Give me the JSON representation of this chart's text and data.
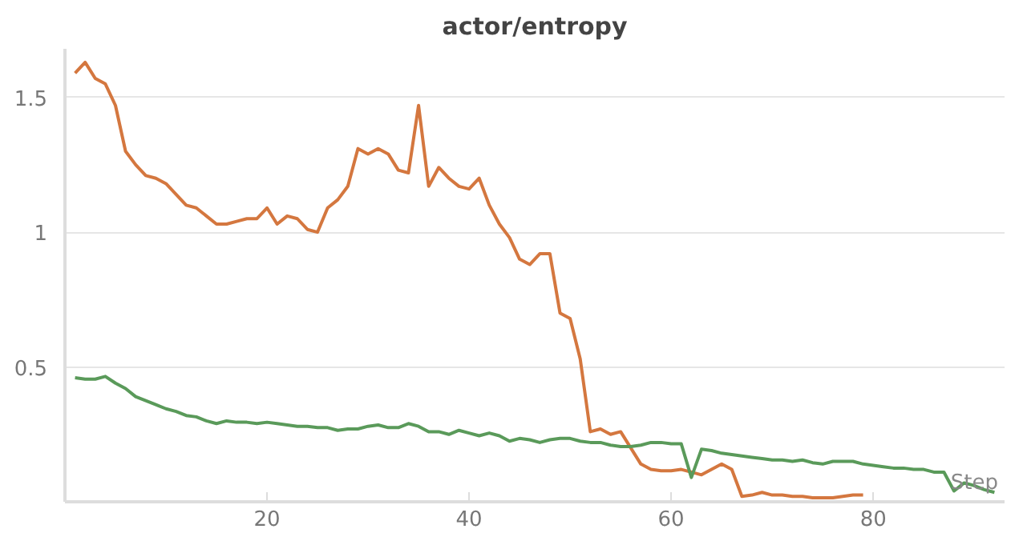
{
  "chart_data": {
    "type": "line",
    "title": "actor/entropy",
    "xlabel": "Step",
    "xlim": [
      0,
      93
    ],
    "ylim": [
      0,
      1.68
    ],
    "xticks": [
      20,
      40,
      60,
      80
    ],
    "yticks": [
      0.5,
      1,
      1.5
    ],
    "grid": "y",
    "line_style": "solid",
    "series": [
      {
        "color": "#d4773f",
        "x": [
          1,
          2,
          3,
          4,
          5,
          6,
          7,
          8,
          9,
          10,
          11,
          12,
          13,
          14,
          15,
          16,
          17,
          18,
          19,
          20,
          21,
          22,
          23,
          24,
          25,
          26,
          27,
          28,
          29,
          30,
          31,
          32,
          33,
          34,
          35,
          36,
          37,
          38,
          39,
          40,
          41,
          42,
          43,
          44,
          45,
          46,
          47,
          48,
          49,
          50,
          51,
          52,
          53,
          54,
          55,
          56,
          57,
          58,
          59,
          60,
          61,
          62,
          63,
          64,
          65,
          66,
          67,
          68,
          69,
          70,
          71,
          72,
          73,
          74,
          75,
          76,
          77,
          78,
          79
        ],
        "values": [
          1.59,
          1.63,
          1.57,
          1.55,
          1.47,
          1.3,
          1.25,
          1.21,
          1.2,
          1.18,
          1.14,
          1.1,
          1.09,
          1.06,
          1.03,
          1.03,
          1.04,
          1.05,
          1.05,
          1.09,
          1.03,
          1.06,
          1.05,
          1.01,
          1.0,
          1.09,
          1.12,
          1.17,
          1.31,
          1.29,
          1.31,
          1.29,
          1.23,
          1.22,
          1.47,
          1.17,
          1.24,
          1.2,
          1.17,
          1.16,
          1.2,
          1.1,
          1.03,
          0.98,
          0.9,
          0.88,
          0.92,
          0.92,
          0.7,
          0.68,
          0.53,
          0.26,
          0.27,
          0.25,
          0.26,
          0.2,
          0.14,
          0.12,
          0.115,
          0.115,
          0.12,
          0.11,
          0.1,
          0.12,
          0.14,
          0.12,
          0.02,
          0.025,
          0.035,
          0.025,
          0.025,
          0.02,
          0.02,
          0.015,
          0.015,
          0.015,
          0.02,
          0.025,
          0.025
        ]
      },
      {
        "color": "#5a9a5a",
        "x": [
          1,
          2,
          3,
          4,
          5,
          6,
          7,
          8,
          9,
          10,
          11,
          12,
          13,
          14,
          15,
          16,
          17,
          18,
          19,
          20,
          21,
          22,
          23,
          24,
          25,
          26,
          27,
          28,
          29,
          30,
          31,
          32,
          33,
          34,
          35,
          36,
          37,
          38,
          39,
          40,
          41,
          42,
          43,
          44,
          45,
          46,
          47,
          48,
          49,
          50,
          51,
          52,
          53,
          54,
          55,
          56,
          57,
          58,
          59,
          60,
          61,
          62,
          63,
          64,
          65,
          66,
          67,
          68,
          69,
          70,
          71,
          72,
          73,
          74,
          75,
          76,
          77,
          78,
          79,
          80,
          81,
          82,
          83,
          84,
          85,
          86,
          87,
          88,
          89,
          90,
          91,
          92
        ],
        "values": [
          0.46,
          0.455,
          0.455,
          0.465,
          0.44,
          0.42,
          0.39,
          0.375,
          0.36,
          0.345,
          0.335,
          0.32,
          0.315,
          0.3,
          0.29,
          0.3,
          0.295,
          0.295,
          0.29,
          0.295,
          0.29,
          0.285,
          0.28,
          0.28,
          0.275,
          0.275,
          0.265,
          0.27,
          0.27,
          0.28,
          0.285,
          0.275,
          0.275,
          0.29,
          0.28,
          0.26,
          0.26,
          0.25,
          0.265,
          0.255,
          0.245,
          0.255,
          0.245,
          0.225,
          0.235,
          0.23,
          0.22,
          0.23,
          0.235,
          0.235,
          0.225,
          0.22,
          0.22,
          0.21,
          0.205,
          0.205,
          0.21,
          0.22,
          0.22,
          0.215,
          0.215,
          0.09,
          0.195,
          0.19,
          0.18,
          0.175,
          0.17,
          0.165,
          0.16,
          0.155,
          0.155,
          0.15,
          0.155,
          0.145,
          0.14,
          0.15,
          0.15,
          0.15,
          0.14,
          0.135,
          0.13,
          0.125,
          0.125,
          0.12,
          0.12,
          0.11,
          0.11,
          0.04,
          0.07,
          0.06,
          0.045,
          0.035
        ]
      }
    ]
  }
}
